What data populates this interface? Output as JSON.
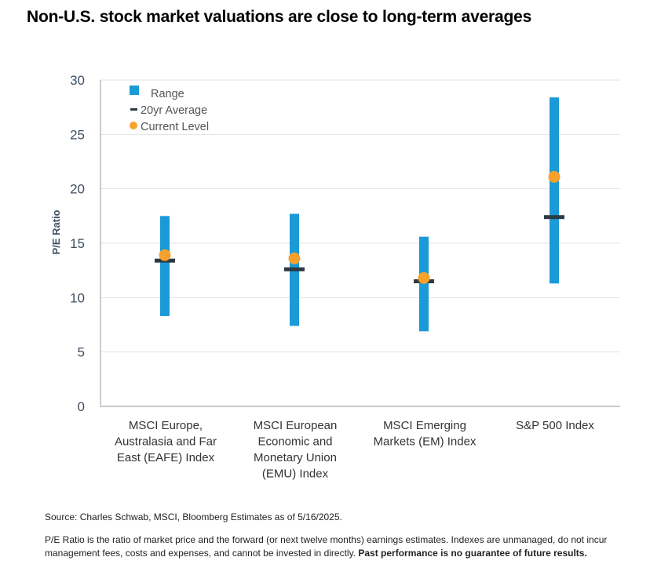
{
  "title": "Non-U.S. stock market valuations are close to long-term averages",
  "chart_data": {
    "type": "range",
    "ylabel": "P/E Ratio",
    "ylim": [
      0,
      30
    ],
    "yticks": [
      "0",
      "5",
      "10",
      "15",
      "20",
      "25",
      "30"
    ],
    "legend": [
      "Range",
      "20yr Average",
      "Current Level"
    ],
    "categories": [
      [
        "MSCI Europe,",
        "Australasia and Far",
        "East (EAFE) Index"
      ],
      [
        "MSCI European",
        "Economic and",
        "Monetary Union",
        "(EMU) Index"
      ],
      [
        "MSCI Emerging",
        "Markets (EM) Index"
      ],
      [
        "S&P 500 Index"
      ]
    ],
    "series": [
      {
        "name": "Range low",
        "values": [
          8.3,
          7.4,
          6.9,
          11.3
        ]
      },
      {
        "name": "Range high",
        "values": [
          17.5,
          17.7,
          15.6,
          28.4
        ]
      },
      {
        "name": "20yr Average",
        "values": [
          13.4,
          12.6,
          11.5,
          17.4
        ]
      },
      {
        "name": "Current Level",
        "values": [
          13.9,
          13.6,
          11.8,
          21.1
        ]
      }
    ],
    "colors": {
      "range": "#1a9ad6",
      "average": "#2d3a44",
      "current": "#f7a12b",
      "grid": "#e3e3e3",
      "axis": "#a9a9a9"
    }
  },
  "source": "Source: Charles Schwab, MSCI, Bloomberg Estimates as of 5/16/2025.",
  "note": "P/E Ratio is the ratio of market price and the forward (or next twelve months) earnings estimates. Indexes are unmanaged, do not incur management fees, costs and expenses, and cannot be invested in directly.",
  "note_bold": "Past performance is no guarantee of future results."
}
